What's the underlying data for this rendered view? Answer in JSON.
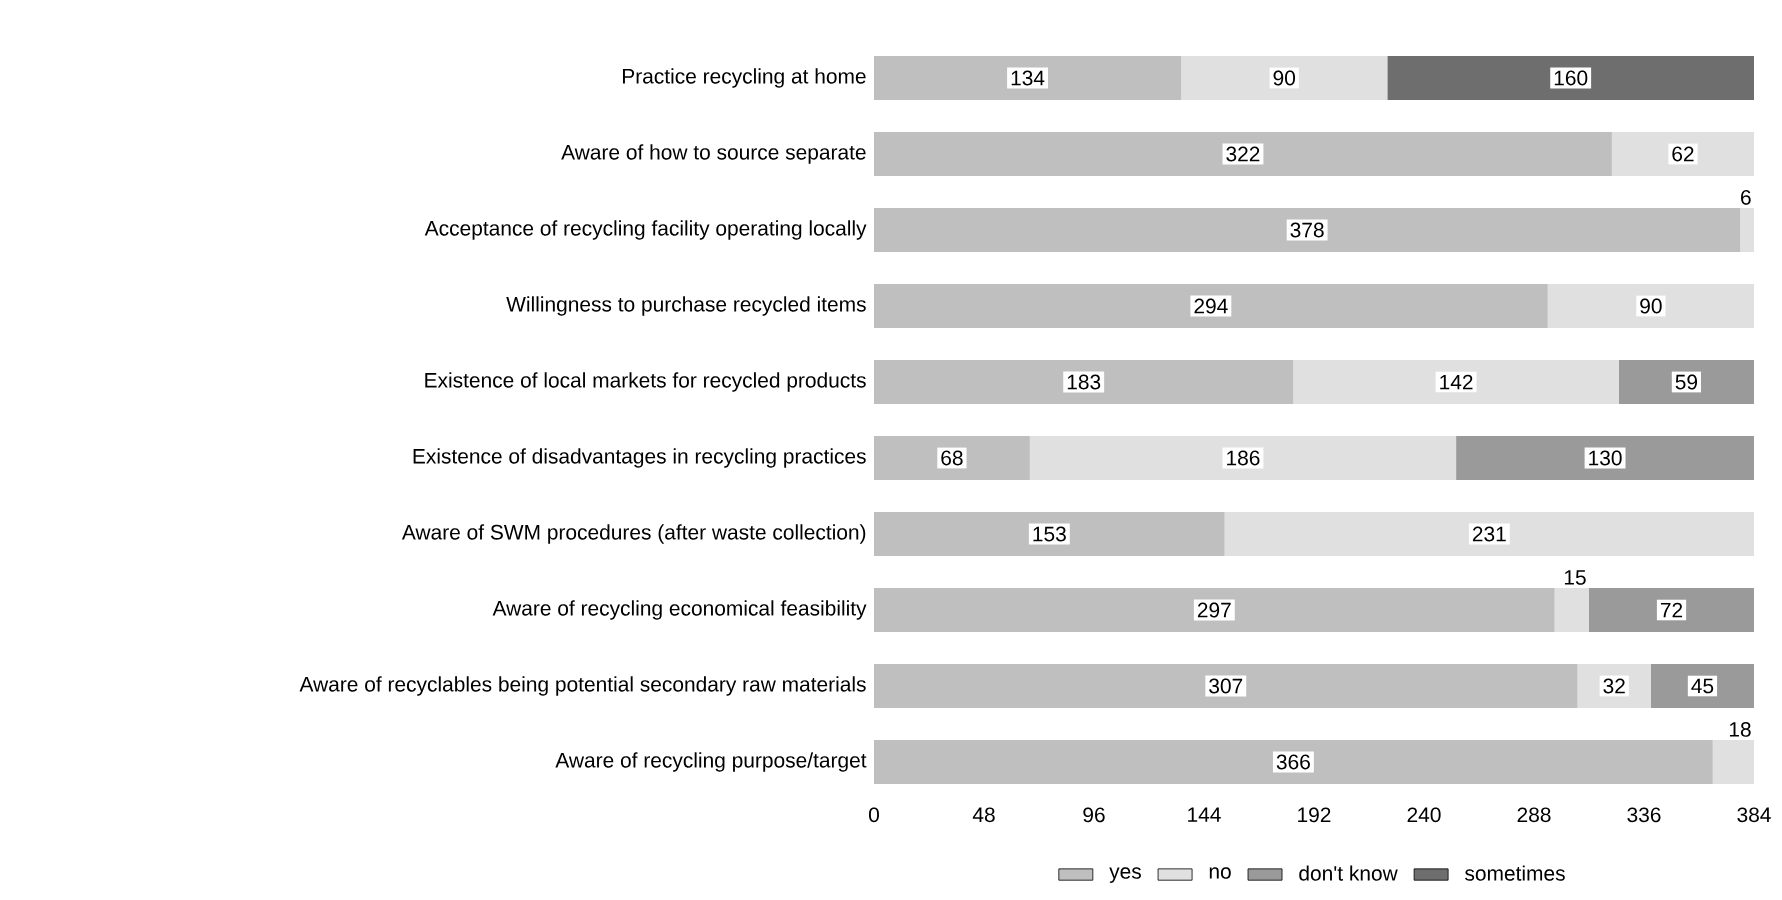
{
  "chart_data": {
    "type": "bar",
    "orientation": "horizontal",
    "stacked": true,
    "data_labels": true,
    "legend": "bottom",
    "categories": [
      "Practice recycling at home",
      "Aware of how to source separate",
      "Acceptance of recycling facility operating locally",
      "Willingness to purchase recycled items",
      "Existence of local markets for recycled products",
      "Existence of disadvantages in recycling practices",
      "Aware of SWM procedures (after waste collection)",
      "Aware of recycling economical feasibility",
      "Aware of recyclables being potential secondary raw materials",
      "Aware of recycling purpose/target"
    ],
    "series": [
      {
        "name": "yes",
        "color": "#bfbfbf",
        "values": [
          134,
          322,
          378,
          294,
          183,
          68,
          153,
          297,
          307,
          366
        ]
      },
      {
        "name": "no",
        "color": "#e0e0e0",
        "values": [
          90,
          62,
          6,
          90,
          142,
          186,
          231,
          15,
          32,
          18
        ]
      },
      {
        "name": "don't know",
        "color": "#9a9a9a",
        "values": [
          null,
          null,
          null,
          null,
          59,
          130,
          null,
          72,
          45,
          null
        ]
      },
      {
        "name": "sometimes",
        "color": "#6e6e6e",
        "values": [
          160,
          null,
          null,
          null,
          null,
          null,
          null,
          null,
          null,
          null
        ]
      }
    ],
    "xlim": [
      0,
      384
    ],
    "xticks": [
      0,
      48,
      96,
      144,
      192,
      240,
      288,
      336,
      384
    ]
  }
}
